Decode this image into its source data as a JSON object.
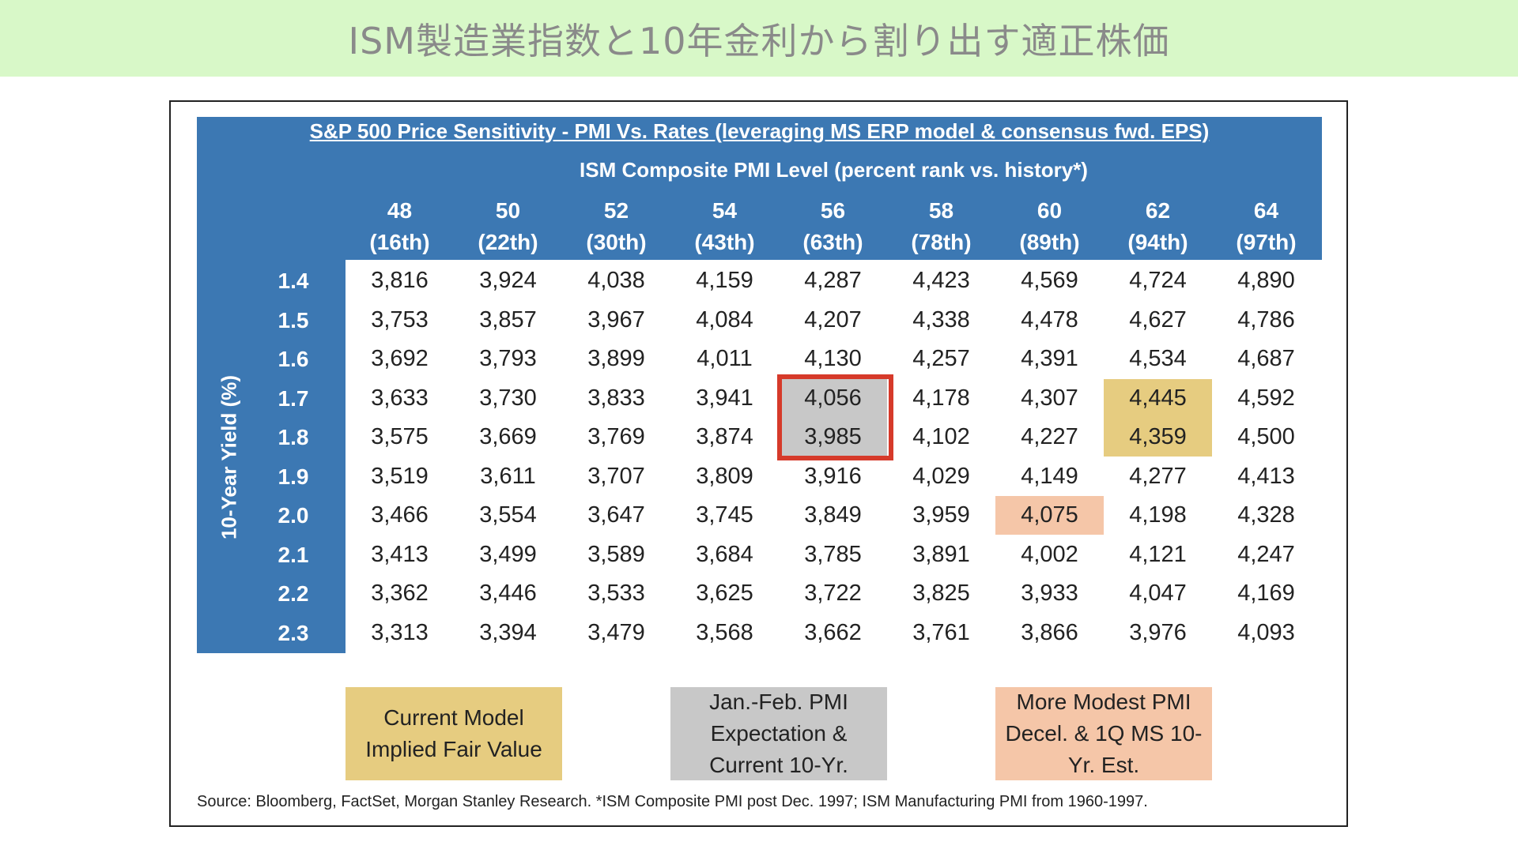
{
  "page": {
    "heading": "ISM製造業指数と10年金利から割り出す適正株価"
  },
  "table": {
    "title": "S&P 500 Price Sensitivity - PMI Vs. Rates (leveraging MS ERP model & consensus fwd. EPS)",
    "subtitle": "ISM Composite PMI Level (percent rank vs. history*)",
    "y_axis_label": "10-Year Yield (%)",
    "columns": [
      {
        "pmi": "48",
        "rank": "(16th)"
      },
      {
        "pmi": "50",
        "rank": "(22th)"
      },
      {
        "pmi": "52",
        "rank": "(30th)"
      },
      {
        "pmi": "54",
        "rank": "(43th)"
      },
      {
        "pmi": "56",
        "rank": "(63th)"
      },
      {
        "pmi": "58",
        "rank": "(78th)"
      },
      {
        "pmi": "60",
        "rank": "(89th)"
      },
      {
        "pmi": "62",
        "rank": "(94th)"
      },
      {
        "pmi": "64",
        "rank": "(97th)"
      }
    ],
    "rows": [
      {
        "yield": "1.4",
        "values": [
          "3,816",
          "3,924",
          "4,038",
          "4,159",
          "4,287",
          "4,423",
          "4,569",
          "4,724",
          "4,890"
        ]
      },
      {
        "yield": "1.5",
        "values": [
          "3,753",
          "3,857",
          "3,967",
          "4,084",
          "4,207",
          "4,338",
          "4,478",
          "4,627",
          "4,786"
        ]
      },
      {
        "yield": "1.6",
        "values": [
          "3,692",
          "3,793",
          "3,899",
          "4,011",
          "4,130",
          "4,257",
          "4,391",
          "4,534",
          "4,687"
        ]
      },
      {
        "yield": "1.7",
        "values": [
          "3,633",
          "3,730",
          "3,833",
          "3,941",
          "4,056",
          "4,178",
          "4,307",
          "4,445",
          "4,592"
        ]
      },
      {
        "yield": "1.8",
        "values": [
          "3,575",
          "3,669",
          "3,769",
          "3,874",
          "3,985",
          "4,102",
          "4,227",
          "4,359",
          "4,500"
        ]
      },
      {
        "yield": "1.9",
        "values": [
          "3,519",
          "3,611",
          "3,707",
          "3,809",
          "3,916",
          "4,029",
          "4,149",
          "4,277",
          "4,413"
        ]
      },
      {
        "yield": "2.0",
        "values": [
          "3,466",
          "3,554",
          "3,647",
          "3,745",
          "3,849",
          "3,959",
          "4,075",
          "4,198",
          "4,328"
        ]
      },
      {
        "yield": "2.1",
        "values": [
          "3,413",
          "3,499",
          "3,589",
          "3,684",
          "3,785",
          "3,891",
          "4,002",
          "4,121",
          "4,247"
        ]
      },
      {
        "yield": "2.2",
        "values": [
          "3,362",
          "3,446",
          "3,533",
          "3,625",
          "3,722",
          "3,825",
          "3,933",
          "4,047",
          "4,169"
        ]
      },
      {
        "yield": "2.3",
        "values": [
          "3,313",
          "3,394",
          "3,479",
          "3,568",
          "3,662",
          "3,761",
          "3,866",
          "3,976",
          "4,093"
        ]
      }
    ],
    "highlights": [
      {
        "style": "gold",
        "row": 3,
        "col": 7
      },
      {
        "style": "gold",
        "row": 4,
        "col": 7
      },
      {
        "style": "gray",
        "row": 3,
        "col": 4
      },
      {
        "style": "gray",
        "row": 4,
        "col": 4
      },
      {
        "style": "peach",
        "row": 6,
        "col": 6
      }
    ]
  },
  "legend": [
    {
      "style": "gold",
      "text": "Current Model Implied Fair Value"
    },
    {
      "style": "gray",
      "text": "Jan.-Feb. PMI Expectation & Current 10-Yr."
    },
    {
      "style": "peach",
      "text": "More Modest PMI Decel. & 1Q MS 10-Yr. Est."
    }
  ],
  "colors": {
    "header_blue": "#3c78b3",
    "banner_green": "#d8f8c8",
    "gold": "#e6cc80",
    "gray": "#c8c8c8",
    "peach": "#f5c6a8",
    "red_outline": "#d63a2a"
  },
  "source_note": "Source: Bloomberg, FactSet, Morgan Stanley Research. *ISM Composite PMI post Dec. 1997; ISM Manufacturing PMI from 1960-1997."
}
